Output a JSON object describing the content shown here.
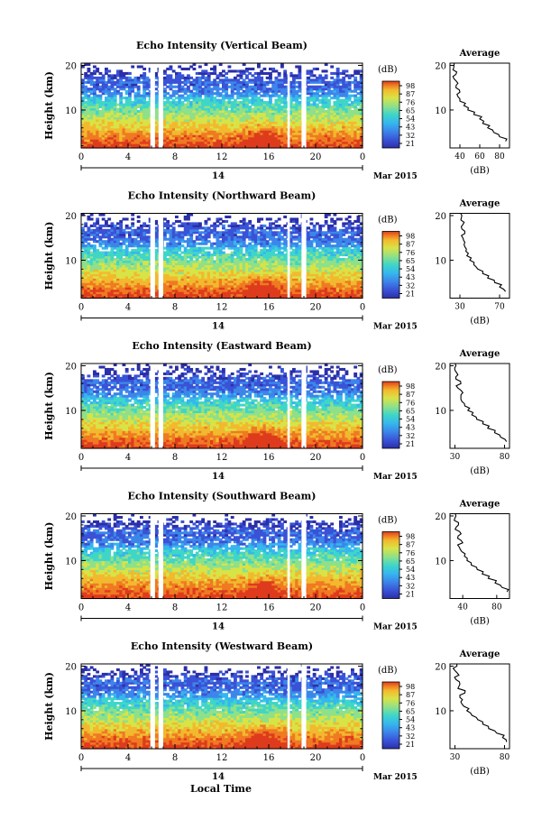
{
  "shared": {
    "height_label": "Height (km)",
    "colorbar_unit": "(dB)",
    "avg_title": "Average",
    "avg_xlabel": "(dB)",
    "day_label": "14",
    "month_label": "Mar 2015",
    "x_ticks": [
      "0",
      "4",
      "8",
      "12",
      "16",
      "20",
      "0"
    ],
    "y_ticks": [
      "20",
      "10"
    ],
    "xlabel": "Local Time"
  },
  "colors": {
    "scale": [
      "#2b2fa8",
      "#3a52d6",
      "#3c86ea",
      "#35b6ee",
      "#3fd6c8",
      "#8ee08a",
      "#d8e347",
      "#f2b92e",
      "#ef7a22",
      "#de3b1d"
    ]
  },
  "chart_data": [
    {
      "type": "heatmap",
      "title": "Echo Intensity (Vertical Beam)",
      "ylabel": "Height (km)",
      "ylim": [
        1.5,
        20.5
      ],
      "x_range_hours": [
        0,
        24
      ],
      "gaps_hours": [
        [
          5.9,
          6.3
        ],
        [
          6.6,
          7.0
        ],
        [
          17.6,
          17.8
        ],
        [
          18.8,
          19.2
        ]
      ],
      "colorbar_ticks": [
        "98",
        "87",
        "76",
        "65",
        "54",
        "43",
        "32",
        "21"
      ],
      "average": {
        "x_ticks": [
          "40",
          "60",
          "80"
        ],
        "xlim": [
          30,
          90
        ],
        "profile": [
          [
            3,
            86
          ],
          [
            4,
            80
          ],
          [
            5,
            74
          ],
          [
            6,
            68
          ],
          [
            7,
            63
          ],
          [
            8,
            60
          ],
          [
            9,
            54
          ],
          [
            10,
            48
          ],
          [
            11,
            44
          ],
          [
            12,
            40
          ],
          [
            13,
            38
          ],
          [
            14,
            40
          ],
          [
            15,
            36
          ],
          [
            16,
            38
          ],
          [
            17,
            34
          ],
          [
            18,
            36
          ],
          [
            19,
            33
          ],
          [
            20,
            34
          ]
        ]
      }
    },
    {
      "type": "heatmap",
      "title": "Echo Intensity (Northward Beam)",
      "ylabel": "Height (km)",
      "ylim": [
        1.5,
        20.5
      ],
      "x_range_hours": [
        0,
        24
      ],
      "gaps_hours": [
        [
          5.9,
          6.3
        ],
        [
          6.6,
          7.0
        ],
        [
          17.6,
          17.8
        ],
        [
          18.8,
          19.2
        ]
      ],
      "colorbar_ticks": [
        "98",
        "87",
        "76",
        "65",
        "54",
        "43",
        "32",
        "21"
      ],
      "average": {
        "x_ticks": [
          "30",
          "70"
        ],
        "xlim": [
          20,
          80
        ],
        "profile": [
          [
            3,
            76
          ],
          [
            4,
            70
          ],
          [
            5,
            65
          ],
          [
            6,
            58
          ],
          [
            7,
            53
          ],
          [
            8,
            48
          ],
          [
            9,
            44
          ],
          [
            10,
            40
          ],
          [
            11,
            37
          ],
          [
            12,
            36
          ],
          [
            13,
            35
          ],
          [
            14,
            35
          ],
          [
            15,
            33
          ],
          [
            16,
            35
          ],
          [
            17,
            32
          ],
          [
            18,
            33
          ],
          [
            19,
            31
          ],
          [
            20,
            32
          ]
        ]
      }
    },
    {
      "type": "heatmap",
      "title": "Echo Intensity (Eastward Beam)",
      "ylabel": "Height (km)",
      "ylim": [
        1.5,
        20.5
      ],
      "x_range_hours": [
        0,
        24
      ],
      "gaps_hours": [
        [
          5.9,
          6.3
        ],
        [
          6.6,
          7.0
        ],
        [
          17.6,
          17.8
        ],
        [
          18.8,
          19.2
        ]
      ],
      "colorbar_ticks": [
        "98",
        "87",
        "76",
        "65",
        "54",
        "43",
        "32",
        "21"
      ],
      "average": {
        "x_ticks": [
          "30",
          "80"
        ],
        "xlim": [
          25,
          85
        ],
        "profile": [
          [
            3,
            82
          ],
          [
            4,
            76
          ],
          [
            5,
            70
          ],
          [
            6,
            63
          ],
          [
            7,
            58
          ],
          [
            8,
            52
          ],
          [
            9,
            47
          ],
          [
            10,
            43
          ],
          [
            11,
            40
          ],
          [
            12,
            37
          ],
          [
            13,
            36
          ],
          [
            14,
            38
          ],
          [
            15,
            33
          ],
          [
            16,
            36
          ],
          [
            17,
            31
          ],
          [
            18,
            33
          ],
          [
            19,
            30
          ],
          [
            20,
            31
          ]
        ]
      }
    },
    {
      "type": "heatmap",
      "title": "Echo Intensity (Southward Beam)",
      "ylabel": "Height (km)",
      "ylim": [
        1.5,
        20.5
      ],
      "x_range_hours": [
        0,
        24
      ],
      "gaps_hours": [
        [
          5.9,
          6.3
        ],
        [
          6.6,
          7.0
        ],
        [
          17.6,
          17.8
        ],
        [
          18.8,
          19.2
        ]
      ],
      "colorbar_ticks": [
        "98",
        "87",
        "76",
        "65",
        "54",
        "43",
        "32",
        "21"
      ],
      "average": {
        "x_ticks": [
          "40",
          "80"
        ],
        "xlim": [
          25,
          95
        ],
        "profile": [
          [
            3,
            92
          ],
          [
            4,
            86
          ],
          [
            5,
            78
          ],
          [
            6,
            70
          ],
          [
            7,
            63
          ],
          [
            8,
            57
          ],
          [
            9,
            50
          ],
          [
            10,
            45
          ],
          [
            11,
            42
          ],
          [
            12,
            39
          ],
          [
            13,
            36
          ],
          [
            14,
            40
          ],
          [
            15,
            34
          ],
          [
            16,
            38
          ],
          [
            17,
            31
          ],
          [
            18,
            35
          ],
          [
            19,
            30
          ],
          [
            20,
            32
          ]
        ]
      }
    },
    {
      "type": "heatmap",
      "title": "Echo Intensity (Westward Beam)",
      "ylabel": "Height (km)",
      "ylim": [
        1.5,
        20.5
      ],
      "x_range_hours": [
        0,
        24
      ],
      "gaps_hours": [
        [
          5.9,
          6.3
        ],
        [
          6.6,
          7.0
        ],
        [
          17.6,
          17.8
        ],
        [
          18.8,
          19.2
        ]
      ],
      "colorbar_ticks": [
        "98",
        "87",
        "76",
        "65",
        "54",
        "43",
        "32",
        "21"
      ],
      "average": {
        "x_ticks": [
          "30",
          "80"
        ],
        "xlim": [
          25,
          85
        ],
        "profile": [
          [
            3,
            82
          ],
          [
            4,
            78
          ],
          [
            5,
            72
          ],
          [
            6,
            64
          ],
          [
            7,
            58
          ],
          [
            8,
            53
          ],
          [
            9,
            47
          ],
          [
            10,
            42
          ],
          [
            11,
            39
          ],
          [
            12,
            36
          ],
          [
            13,
            35
          ],
          [
            14,
            40
          ],
          [
            15,
            33
          ],
          [
            16,
            35
          ],
          [
            17,
            31
          ],
          [
            18,
            34
          ],
          [
            19,
            30
          ],
          [
            20,
            32
          ]
        ]
      }
    }
  ]
}
